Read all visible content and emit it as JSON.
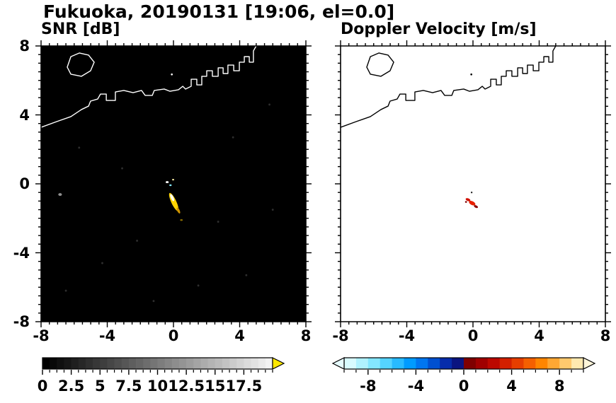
{
  "title": "Fukuoka, 20190131 [19:06, el=0.0]",
  "chart_data": [
    {
      "type": "heatmap",
      "title": "SNR [dB]",
      "xlim": [
        -8,
        8
      ],
      "ylim": [
        -8,
        8
      ],
      "x_ticks": [
        "-8",
        "-4",
        "0",
        "4",
        "8"
      ],
      "y_ticks": [
        "8",
        "4",
        "0",
        "-4",
        "-8"
      ],
      "axis": {
        "major_every": 4,
        "minor_step": 0.5
      },
      "background": "#000000",
      "coast_color": "#ffffff",
      "colorbar": {
        "vmin": 0,
        "vmax": 20,
        "minor_step": 0.625,
        "segments": 32,
        "gradient": [
          "#000000",
          "#f2f2f2"
        ],
        "over_arrow": "#ffe800",
        "under_arrow": null,
        "labels": [
          {
            "v": 0,
            "t": "0"
          },
          {
            "v": 2.5,
            "t": "2.5"
          },
          {
            "v": 5,
            "t": "5"
          },
          {
            "v": 7.5,
            "t": "7.5"
          },
          {
            "v": 10,
            "t": "10"
          },
          {
            "v": 12.5,
            "t": "12.5"
          },
          {
            "v": 15,
            "t": "15"
          },
          {
            "v": 17.5,
            "t": "17.5"
          }
        ]
      },
      "features": [
        {
          "x": -0.38,
          "y": 0.1,
          "w": 0.18,
          "h": 0.12,
          "angle": 0,
          "color": "#ffffff"
        },
        {
          "x": -0.18,
          "y": -0.08,
          "w": 0.14,
          "h": 0.1,
          "angle": 0,
          "color": "#86ecff"
        },
        {
          "x": -0.02,
          "y": 0.24,
          "w": 0.12,
          "h": 0.09,
          "angle": 0,
          "color": "#fff2a6"
        },
        {
          "x": 0.02,
          "y": -1.05,
          "w": 1.15,
          "h": 0.3,
          "angle": 64,
          "color": "#ffd400"
        },
        {
          "x": -0.08,
          "y": -0.8,
          "w": 0.45,
          "h": 0.16,
          "angle": 64,
          "color": "#ffffff"
        },
        {
          "x": 0.3,
          "y": -1.55,
          "w": 0.38,
          "h": 0.15,
          "angle": 64,
          "color": "#cf9400"
        },
        {
          "x": 0.48,
          "y": -2.1,
          "w": 0.16,
          "h": 0.1,
          "angle": 0,
          "color": "#8a6d00"
        },
        {
          "x": -6.85,
          "y": -0.62,
          "w": 0.22,
          "h": 0.16,
          "angle": 0,
          "color": "#8f8f8f"
        },
        {
          "x": -5.7,
          "y": 2.1,
          "w": 0.12,
          "h": 0.12,
          "angle": 0,
          "color": "#2e2e2e"
        },
        {
          "x": -3.1,
          "y": 0.9,
          "w": 0.12,
          "h": 0.12,
          "angle": 0,
          "color": "#2e2e2e"
        },
        {
          "x": 3.6,
          "y": 2.7,
          "w": 0.12,
          "h": 0.12,
          "angle": 0,
          "color": "#2e2e2e"
        },
        {
          "x": 6.0,
          "y": -1.5,
          "w": 0.12,
          "h": 0.12,
          "angle": 0,
          "color": "#2e2e2e"
        },
        {
          "x": -4.3,
          "y": -4.6,
          "w": 0.12,
          "h": 0.12,
          "angle": 0,
          "color": "#2e2e2e"
        },
        {
          "x": 1.5,
          "y": -5.9,
          "w": 0.12,
          "h": 0.12,
          "angle": 0,
          "color": "#2e2e2e"
        },
        {
          "x": -6.5,
          "y": -6.2,
          "w": 0.12,
          "h": 0.12,
          "angle": 0,
          "color": "#2e2e2e"
        },
        {
          "x": 4.4,
          "y": -5.3,
          "w": 0.12,
          "h": 0.12,
          "angle": 0,
          "color": "#2e2e2e"
        },
        {
          "x": -2.2,
          "y": -3.3,
          "w": 0.12,
          "h": 0.12,
          "angle": 0,
          "color": "#2e2e2e"
        },
        {
          "x": 5.8,
          "y": 4.6,
          "w": 0.12,
          "h": 0.12,
          "angle": 0,
          "color": "#2e2e2e"
        },
        {
          "x": 2.7,
          "y": -2.2,
          "w": 0.12,
          "h": 0.12,
          "angle": 0,
          "color": "#2e2e2e"
        },
        {
          "x": -1.2,
          "y": -6.8,
          "w": 0.12,
          "h": 0.12,
          "angle": 0,
          "color": "#2e2e2e"
        }
      ]
    },
    {
      "type": "heatmap",
      "title": "Doppler Velocity [m/s]",
      "xlim": [
        -8,
        8
      ],
      "ylim": [
        -8,
        8
      ],
      "x_ticks": [
        "-8",
        "-4",
        "0",
        "4",
        "8"
      ],
      "y_ticks": [
        "8",
        "4",
        "0",
        "-4",
        "-8"
      ],
      "axis": {
        "major_every": 4,
        "minor_step": 0.5
      },
      "background": "#ffffff",
      "coast_color": "#000000",
      "colorbar": {
        "vmin": -10,
        "vmax": 10,
        "minor_step": 1,
        "colors": [
          "#d8fbff",
          "#b0f2ff",
          "#84e6ff",
          "#55d3ff",
          "#28baff",
          "#009bff",
          "#0076f0",
          "#0050d0",
          "#062cab",
          "#0b1480",
          "#7f0000",
          "#a00000",
          "#bc0800",
          "#d32000",
          "#e63e00",
          "#f56000",
          "#ff8500",
          "#ffa733",
          "#ffc96e",
          "#ffe9b0"
        ],
        "over_arrow": "#fff6da",
        "under_arrow": "#e6fcff",
        "labels": [
          {
            "v": -8,
            "t": "-8"
          },
          {
            "v": -4,
            "t": "-4"
          },
          {
            "v": 0,
            "t": "0"
          },
          {
            "v": 4,
            "t": "4"
          },
          {
            "v": 8,
            "t": "8"
          }
        ]
      },
      "features": [
        {
          "x": -0.3,
          "y": -0.92,
          "w": 0.3,
          "h": 0.16,
          "angle": 20,
          "color": "#d01000"
        },
        {
          "x": -0.05,
          "y": -1.12,
          "w": 0.42,
          "h": 0.22,
          "angle": 25,
          "color": "#e82000"
        },
        {
          "x": 0.18,
          "y": -1.32,
          "w": 0.26,
          "h": 0.14,
          "angle": 25,
          "color": "#8b0000"
        },
        {
          "x": -0.42,
          "y": -1.05,
          "w": 0.12,
          "h": 0.1,
          "angle": 0,
          "color": "#7f0000"
        },
        {
          "x": -0.08,
          "y": -0.5,
          "w": 0.1,
          "h": 0.1,
          "angle": 0,
          "color": "#202020"
        }
      ]
    }
  ],
  "coastline": {
    "segments": [
      [
        [
          -8,
          3.28
        ],
        [
          -7.06,
          3.61
        ],
        [
          -6.2,
          3.9
        ],
        [
          -5.56,
          4.31
        ],
        [
          -5.13,
          4.51
        ],
        [
          -5.01,
          4.8
        ],
        [
          -4.58,
          4.92
        ],
        [
          -4.41,
          5.21
        ],
        [
          -4.06,
          5.21
        ],
        [
          -4.06,
          4.84
        ],
        [
          -3.51,
          4.84
        ],
        [
          -3.51,
          5.33
        ],
        [
          -3,
          5.42
        ],
        [
          -2.44,
          5.29
        ],
        [
          -1.93,
          5.42
        ],
        [
          -1.71,
          5.13
        ],
        [
          -1.28,
          5.13
        ],
        [
          -1.16,
          5.42
        ],
        [
          -0.56,
          5.5
        ],
        [
          -0.21,
          5.37
        ],
        [
          0.3,
          5.46
        ],
        [
          0.56,
          5.66
        ],
        [
          0.73,
          5.5
        ],
        [
          1.07,
          5.66
        ],
        [
          1.07,
          6.07
        ],
        [
          1.41,
          6.07
        ],
        [
          1.41,
          5.74
        ],
        [
          1.71,
          5.74
        ],
        [
          1.71,
          6.24
        ],
        [
          2.01,
          6.24
        ],
        [
          2.01,
          6.56
        ],
        [
          2.35,
          6.56
        ],
        [
          2.35,
          6.24
        ],
        [
          2.7,
          6.24
        ],
        [
          2.7,
          6.73
        ],
        [
          3,
          6.73
        ],
        [
          3,
          6.4
        ],
        [
          3.29,
          6.4
        ],
        [
          3.29,
          6.89
        ],
        [
          3.64,
          6.89
        ],
        [
          3.64,
          6.56
        ],
        [
          3.98,
          6.56
        ],
        [
          3.98,
          7.06
        ],
        [
          4.28,
          7.06
        ],
        [
          4.28,
          7.38
        ],
        [
          4.58,
          7.38
        ],
        [
          4.58,
          7.06
        ],
        [
          4.83,
          7.06
        ],
        [
          4.83,
          7.71
        ],
        [
          5,
          8
        ]
      ]
    ],
    "islands": [
      [
        [
          -6.42,
          6.77
        ],
        [
          -6.2,
          7.38
        ],
        [
          -5.69,
          7.59
        ],
        [
          -5.13,
          7.47
        ],
        [
          -4.79,
          7.06
        ],
        [
          -5.01,
          6.56
        ],
        [
          -5.56,
          6.24
        ],
        [
          -6.2,
          6.36
        ]
      ]
    ],
    "dots": [
      [
        -0.1,
        6.35
      ]
    ]
  }
}
